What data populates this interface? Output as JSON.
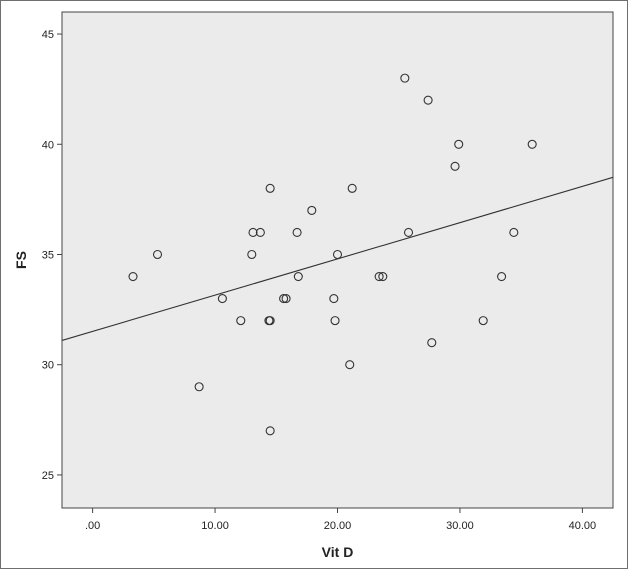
{
  "chart_data": {
    "type": "scatter",
    "title": "",
    "xlabel": "Vit D",
    "ylabel": "FS",
    "xlim": [
      -2.5,
      42.5
    ],
    "ylim": [
      23.5,
      46
    ],
    "x_ticks": [
      0,
      10,
      20,
      30,
      40
    ],
    "x_tick_labels": [
      ".00",
      "10.00",
      "20.00",
      "30.00",
      "40.00"
    ],
    "y_ticks": [
      25,
      30,
      35,
      40,
      45
    ],
    "y_tick_labels": [
      "25",
      "30",
      "35",
      "40",
      "45"
    ],
    "grid": false,
    "background_color": "#ebebeb",
    "marker_color": "#333333",
    "points": [
      {
        "x": 3.3,
        "y": 34
      },
      {
        "x": 5.3,
        "y": 35
      },
      {
        "x": 8.7,
        "y": 29
      },
      {
        "x": 10.6,
        "y": 33
      },
      {
        "x": 12.1,
        "y": 32
      },
      {
        "x": 13.0,
        "y": 35
      },
      {
        "x": 13.1,
        "y": 36
      },
      {
        "x": 13.7,
        "y": 36
      },
      {
        "x": 14.4,
        "y": 32
      },
      {
        "x": 14.5,
        "y": 32
      },
      {
        "x": 14.5,
        "y": 38
      },
      {
        "x": 14.5,
        "y": 27
      },
      {
        "x": 15.6,
        "y": 33
      },
      {
        "x": 15.8,
        "y": 33
      },
      {
        "x": 16.7,
        "y": 36
      },
      {
        "x": 16.8,
        "y": 34
      },
      {
        "x": 17.9,
        "y": 37
      },
      {
        "x": 19.7,
        "y": 33
      },
      {
        "x": 19.8,
        "y": 32
      },
      {
        "x": 20.0,
        "y": 35
      },
      {
        "x": 21.0,
        "y": 30
      },
      {
        "x": 21.2,
        "y": 38
      },
      {
        "x": 23.4,
        "y": 34
      },
      {
        "x": 23.7,
        "y": 34
      },
      {
        "x": 25.5,
        "y": 43
      },
      {
        "x": 25.8,
        "y": 36
      },
      {
        "x": 27.4,
        "y": 42
      },
      {
        "x": 27.7,
        "y": 31
      },
      {
        "x": 29.6,
        "y": 39
      },
      {
        "x": 29.9,
        "y": 40
      },
      {
        "x": 31.9,
        "y": 32
      },
      {
        "x": 33.4,
        "y": 34
      },
      {
        "x": 34.4,
        "y": 36
      },
      {
        "x": 35.9,
        "y": 40
      }
    ],
    "fit_line": {
      "x": [
        -2.5,
        42.5
      ],
      "y": [
        31.1,
        38.5
      ]
    }
  }
}
